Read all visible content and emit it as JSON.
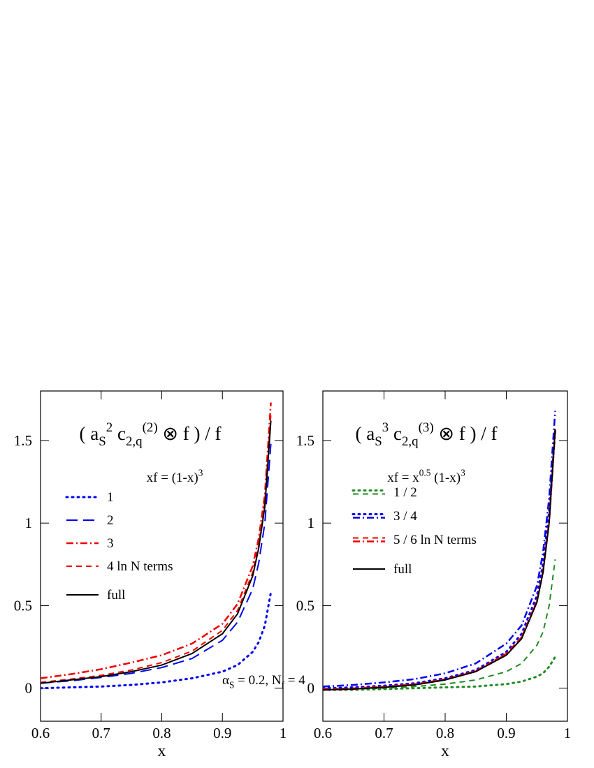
{
  "chart_data": [
    {
      "type": "line",
      "title": [
        {
          "text": "( a"
        },
        {
          "text": "S",
          "script": "sub"
        },
        {
          "text": "2",
          "script": "sup"
        },
        {
          "text": " c"
        },
        {
          "text": "2,q",
          "script": "sub"
        },
        {
          "text": "(2)",
          "script": "sup"
        },
        {
          "text": " ⊗ f ) / f"
        }
      ],
      "annotations": [
        [
          {
            "text": "xf = (1-x)"
          },
          {
            "text": "3",
            "script": "sup"
          }
        ],
        [
          {
            "text": "α"
          },
          {
            "text": "S",
            "script": "sub"
          },
          {
            "text": " = 0.2,  N"
          },
          {
            "text": "f",
            "script": "sub"
          },
          {
            "text": " = 4"
          }
        ]
      ],
      "x_label": "x",
      "x": [
        0.6,
        0.65,
        0.7,
        0.75,
        0.8,
        0.85,
        0.9,
        0.925,
        0.95,
        0.96,
        0.97,
        0.98
      ],
      "series": [
        {
          "name": "1",
          "color": "#0000ee",
          "dash": "dot",
          "values": [
            0.0,
            0.005,
            0.01,
            0.02,
            0.035,
            0.06,
            0.1,
            0.14,
            0.22,
            0.28,
            0.38,
            0.58
          ]
        },
        {
          "name": "2",
          "color": "#0000ee",
          "dash": "longdash",
          "values": [
            0.03,
            0.045,
            0.065,
            0.09,
            0.125,
            0.18,
            0.29,
            0.4,
            0.6,
            0.76,
            1.0,
            1.48
          ]
        },
        {
          "name": "3",
          "color": "#ee0000",
          "dash": "dashdot",
          "values": [
            0.06,
            0.085,
            0.115,
            0.155,
            0.2,
            0.27,
            0.39,
            0.51,
            0.74,
            0.91,
            1.17,
            1.73
          ]
        },
        {
          "name": "4  ln N terms",
          "color": "#ee0000",
          "dash": "dash",
          "values": [
            0.035,
            0.055,
            0.078,
            0.11,
            0.155,
            0.225,
            0.35,
            0.47,
            0.7,
            0.87,
            1.13,
            1.66
          ]
        },
        {
          "name": "full",
          "color": "#000000",
          "dash": "solid",
          "values": [
            0.03,
            0.05,
            0.07,
            0.1,
            0.14,
            0.21,
            0.33,
            0.45,
            0.68,
            0.85,
            1.1,
            1.62
          ]
        }
      ],
      "xlim": [
        0.6,
        1
      ],
      "xticks": [
        0.6,
        0.7,
        0.8,
        0.9,
        1
      ],
      "ylim": [
        -0.2,
        1.8
      ],
      "yticks": [
        0,
        0.5,
        1,
        1.5
      ]
    },
    {
      "type": "line",
      "title": [
        {
          "text": "( a"
        },
        {
          "text": "S",
          "script": "sub"
        },
        {
          "text": "3",
          "script": "sup"
        },
        {
          "text": " c"
        },
        {
          "text": "2,q",
          "script": "sub"
        },
        {
          "text": "(3)",
          "script": "sup"
        },
        {
          "text": " ⊗ f ) / f"
        }
      ],
      "annotations": [
        [
          {
            "text": "xf = x"
          },
          {
            "text": "0.5",
            "script": "sup"
          },
          {
            "text": " (1-x)"
          },
          {
            "text": "3",
            "script": "sup"
          }
        ]
      ],
      "x_label": "x",
      "x": [
        0.6,
        0.65,
        0.7,
        0.75,
        0.8,
        0.85,
        0.9,
        0.925,
        0.95,
        0.96,
        0.97,
        0.98
      ],
      "series": [
        {
          "name": "1 / 2",
          "color": "#228b22",
          "dash": "dot",
          "values": [
            -0.01,
            -0.01,
            -0.005,
            0,
            0.005,
            0.01,
            0.025,
            0.04,
            0.07,
            0.09,
            0.13,
            0.19
          ]
        },
        {
          "name": "1 / 2",
          "color": "#228b22",
          "dash": "dash",
          "values": [
            -0.01,
            -0.005,
            0,
            0.01,
            0.025,
            0.05,
            0.1,
            0.15,
            0.26,
            0.34,
            0.5,
            0.78
          ]
        },
        {
          "name": "3 / 4",
          "color": "#0000ee",
          "dash": "dot",
          "values": [
            0.0,
            0.005,
            0.015,
            0.03,
            0.06,
            0.11,
            0.22,
            0.33,
            0.56,
            0.75,
            1.07,
            1.56
          ]
        },
        {
          "name": "3 / 4",
          "color": "#0000ee",
          "dash": "dashdot",
          "values": [
            0.01,
            0.02,
            0.035,
            0.055,
            0.09,
            0.15,
            0.27,
            0.38,
            0.62,
            0.82,
            1.15,
            1.68
          ]
        },
        {
          "name": "5 / 6  ln N terms",
          "color": "#ee0000",
          "dash": "dash",
          "values": [
            -0.005,
            0,
            0.01,
            0.025,
            0.055,
            0.105,
            0.21,
            0.31,
            0.53,
            0.71,
            1.01,
            1.57
          ]
        },
        {
          "name": "5 / 6  ln N terms",
          "color": "#ee0000",
          "dash": "dashdot",
          "values": [
            -0.01,
            -0.005,
            0.008,
            0.022,
            0.052,
            0.102,
            0.205,
            0.305,
            0.525,
            0.705,
            1.005,
            1.56
          ]
        },
        {
          "name": "full",
          "color": "#000000",
          "dash": "solid",
          "values": [
            -0.01,
            -0.005,
            0.005,
            0.02,
            0.05,
            0.1,
            0.2,
            0.3,
            0.52,
            0.7,
            1.0,
            1.57
          ]
        }
      ],
      "xlim": [
        0.6,
        1
      ],
      "xticks": [
        0.6,
        0.7,
        0.8,
        0.9,
        1
      ],
      "ylim": [
        -0.2,
        1.8
      ],
      "yticks": [
        0,
        0.5,
        1,
        1.5
      ]
    }
  ]
}
